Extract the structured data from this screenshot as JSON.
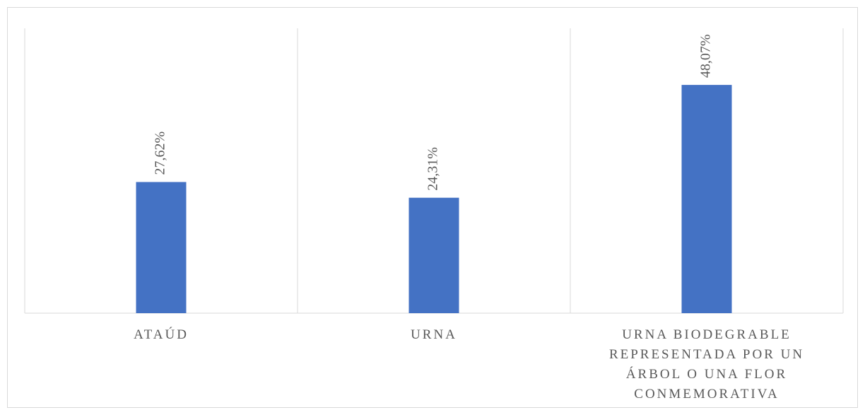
{
  "chart_data": {
    "type": "bar",
    "categories": [
      "ATAÚD",
      "URNA",
      "URNA BIODEGRABLE REPRESENTADA POR UN ÁRBOL O UNA FLOR CONMEMORATIVA"
    ],
    "values": [
      27.62,
      24.31,
      48.07
    ],
    "value_labels": [
      "27,62%",
      "24,31%",
      "48,07%"
    ],
    "color": "#4472c4",
    "ylim": [
      0,
      60
    ]
  }
}
